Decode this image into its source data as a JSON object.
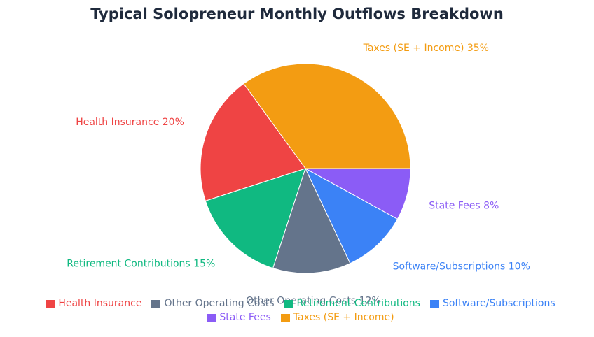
{
  "chart_data": {
    "type": "pie",
    "title": "Typical Solopreneur Monthly Outflows Breakdown",
    "slices": [
      {
        "label": "Taxes (SE + Income)",
        "value": 35,
        "display": "Taxes (SE + Income) 35%",
        "color": "#f39c12"
      },
      {
        "label": "Health Insurance",
        "value": 20,
        "display": "Health Insurance 20%",
        "color": "#ef4444"
      },
      {
        "label": "Retirement Contributions",
        "value": 15,
        "display": "Retirement Contributions 15%",
        "color": "#10b981"
      },
      {
        "label": "Other Operating Costs",
        "value": 12,
        "display": "Other Operating Costs 12%",
        "color": "#64748b"
      },
      {
        "label": "Software/Subscriptions",
        "value": 10,
        "display": "Software/Subscriptions 10%",
        "color": "#3b82f6"
      },
      {
        "label": "State Fees",
        "value": 8,
        "display": "State Fees 8%",
        "color": "#8b5cf6"
      }
    ],
    "legend": {
      "placement": "bottom",
      "items": [
        {
          "label": "Health Insurance",
          "color": "#ef4444"
        },
        {
          "label": "Other Operating Costs",
          "color": "#64748b"
        },
        {
          "label": "Retirement Contributions",
          "color": "#10b981"
        },
        {
          "label": "Software/Subscriptions",
          "color": "#3b82f6"
        },
        {
          "label": "State Fees",
          "color": "#8b5cf6"
        },
        {
          "label": "Taxes (SE + Income)",
          "color": "#f39c12"
        }
      ]
    }
  }
}
